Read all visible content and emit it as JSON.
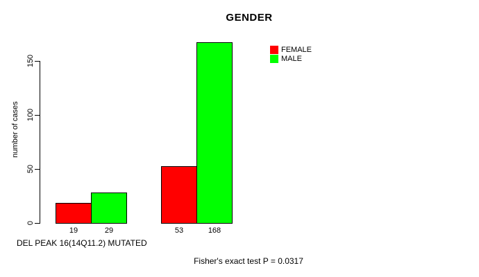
{
  "figure": {
    "background": "#FFFFFF",
    "axis_color": "#000000",
    "text_color": "#000000"
  },
  "chart_data": {
    "type": "bar",
    "title": "GENDER",
    "ylabel": "number of cases",
    "xlabel": "DEL PEAK 16(14Q11.2) MUTATED",
    "annotation": "Fisher's exact test P = 0.0317",
    "yticks": [
      0,
      50,
      100,
      150
    ],
    "ylim": [
      0,
      175
    ],
    "grid": false,
    "legend_position": "top-right",
    "legend": [
      "FEMALE",
      "MALE"
    ],
    "series": [
      {
        "name": "FEMALE",
        "color": "#FF0000",
        "values": [
          19,
          53
        ]
      },
      {
        "name": "MALE",
        "color": "#00FF00",
        "values": [
          29,
          168
        ]
      }
    ],
    "bar_value_labels": [
      "19",
      "29",
      "53",
      "168"
    ]
  }
}
